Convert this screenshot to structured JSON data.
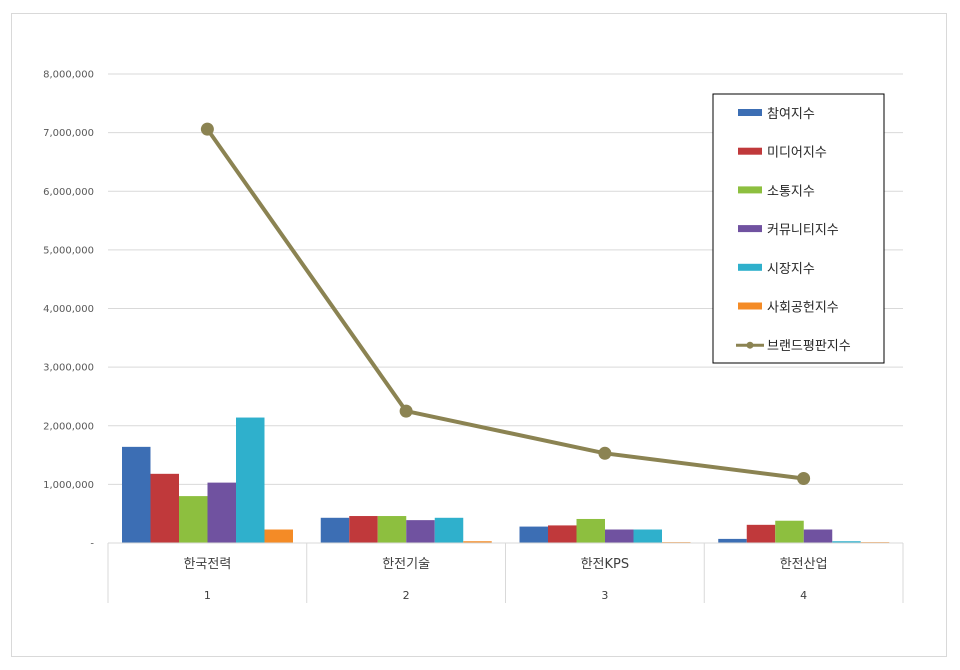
{
  "chart_data": {
    "type": "bar",
    "categories": [
      "한국전력",
      "한전기술",
      "한전KPS",
      "한전산업"
    ],
    "category_index": [
      "1",
      "2",
      "3",
      "4"
    ],
    "ylim": [
      0,
      8000000
    ],
    "yticks": [
      0,
      1000000,
      2000000,
      3000000,
      4000000,
      5000000,
      6000000,
      7000000,
      8000000
    ],
    "ytick_labels": [
      "-",
      "1,000,000",
      "2,000,000",
      "3,000,000",
      "4,000,000",
      "5,000,000",
      "6,000,000",
      "7,000,000",
      "8,000,000"
    ],
    "grid": true,
    "legend_position": "right",
    "series": [
      {
        "name": "참여지수",
        "type": "bar",
        "color": "#3C6EB4",
        "values": [
          1640000,
          430000,
          280000,
          70000
        ]
      },
      {
        "name": "미디어지수",
        "type": "bar",
        "color": "#C0393B",
        "values": [
          1180000,
          460000,
          300000,
          310000
        ]
      },
      {
        "name": "소통지수",
        "type": "bar",
        "color": "#8DBF3F",
        "values": [
          800000,
          460000,
          410000,
          380000
        ]
      },
      {
        "name": "커뮤니티지수",
        "type": "bar",
        "color": "#7052A0",
        "values": [
          1030000,
          390000,
          230000,
          230000
        ]
      },
      {
        "name": "시장지수",
        "type": "bar",
        "color": "#2FB0CC",
        "values": [
          2140000,
          430000,
          230000,
          30000
        ]
      },
      {
        "name": "사회공헌지수",
        "type": "bar",
        "color": "#F48B26",
        "values": [
          230000,
          30000,
          15000,
          15000
        ]
      },
      {
        "name": "브랜드평판지수",
        "type": "line",
        "color": "#8B8352",
        "values": [
          7060000,
          2250000,
          1530000,
          1100000
        ]
      }
    ]
  }
}
